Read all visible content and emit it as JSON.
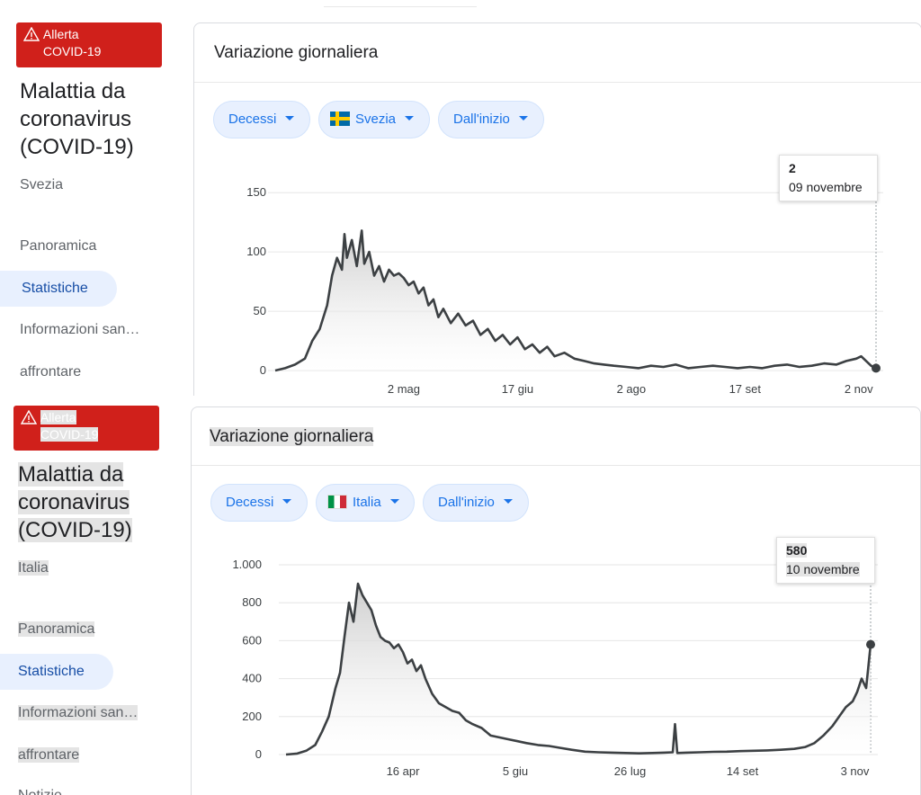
{
  "panels": [
    {
      "alert": {
        "line1": "Allerta",
        "line2": "COVID-19"
      },
      "title": "Malattia da coronavirus (COVID-19)",
      "country": "Svezia",
      "nav": [
        "Panoramica",
        "Statistiche",
        "Informazioni san…",
        "affrontare"
      ],
      "card_title": "Variazione giornaliera",
      "chips": {
        "metric": "Decessi",
        "country": "Svezia",
        "range": "Dall'inizio"
      },
      "tooltip": {
        "value": "2",
        "date": "09 novembre"
      }
    },
    {
      "alert": {
        "line1": "Allerta",
        "line2": "COVID-19"
      },
      "title": "Malattia da coronavirus (COVID-19)",
      "country": "Italia",
      "nav": [
        "Panoramica",
        "Statistiche",
        "Informazioni san…",
        "affrontare",
        "Notizie"
      ],
      "card_title": "Variazione giornaliera",
      "chips": {
        "metric": "Decessi",
        "country": "Italia",
        "range": "Dall'inizio"
      },
      "tooltip": {
        "value": "580",
        "date": "10 novembre"
      }
    }
  ],
  "colors": {
    "line": "#3c4043",
    "alert": "#d0201b",
    "chip_bg": "#e8f0fe",
    "chip_text": "#1a73e8",
    "active_nav": "#174ea6"
  },
  "chart_data": [
    {
      "type": "area",
      "xlabel": "",
      "ylabel": "",
      "ylim": [
        0,
        160
      ],
      "yticks": [
        0,
        50,
        100,
        150
      ],
      "ytick_labels": [
        "0",
        "50",
        "100",
        "150"
      ],
      "xlim": [
        "2020-03-11",
        "2020-11-09"
      ],
      "xticks": [
        "2020-05-02",
        "2020-06-17",
        "2020-08-02",
        "2020-09-17",
        "2020-11-02"
      ],
      "xtick_labels": [
        "2 mag",
        "17 giu",
        "2 ago",
        "17 set",
        "2 nov"
      ],
      "series": [
        {
          "x": [
            "2020-03-11",
            "2020-03-15",
            "2020-03-19",
            "2020-03-23",
            "2020-03-26",
            "2020-03-29",
            "2020-04-01",
            "2020-04-03",
            "2020-04-05",
            "2020-04-07",
            "2020-04-08",
            "2020-04-09",
            "2020-04-11",
            "2020-04-13",
            "2020-04-15",
            "2020-04-16",
            "2020-04-18",
            "2020-04-20",
            "2020-04-22",
            "2020-04-24",
            "2020-04-26",
            "2020-04-28",
            "2020-04-30",
            "2020-05-02",
            "2020-05-04",
            "2020-05-06",
            "2020-05-08",
            "2020-05-10",
            "2020-05-12",
            "2020-05-14",
            "2020-05-16",
            "2020-05-18",
            "2020-05-21",
            "2020-05-24",
            "2020-05-27",
            "2020-05-30",
            "2020-06-02",
            "2020-06-05",
            "2020-06-08",
            "2020-06-11",
            "2020-06-14",
            "2020-06-17",
            "2020-06-20",
            "2020-06-23",
            "2020-06-26",
            "2020-06-29",
            "2020-07-02",
            "2020-07-06",
            "2020-07-10",
            "2020-07-14",
            "2020-07-18",
            "2020-07-22",
            "2020-07-26",
            "2020-07-31",
            "2020-08-05",
            "2020-08-10",
            "2020-08-15",
            "2020-08-20",
            "2020-08-25",
            "2020-08-30",
            "2020-09-04",
            "2020-09-09",
            "2020-09-14",
            "2020-09-19",
            "2020-09-24",
            "2020-09-29",
            "2020-10-04",
            "2020-10-09",
            "2020-10-14",
            "2020-10-19",
            "2020-10-24",
            "2020-10-28",
            "2020-11-01",
            "2020-11-03",
            "2020-11-05",
            "2020-11-07",
            "2020-11-09"
          ],
          "values": [
            0,
            2,
            5,
            10,
            25,
            35,
            55,
            80,
            95,
            85,
            115,
            95,
            110,
            88,
            118,
            90,
            100,
            80,
            88,
            75,
            85,
            80,
            82,
            78,
            72,
            75,
            65,
            70,
            55,
            60,
            45,
            52,
            40,
            48,
            38,
            42,
            30,
            35,
            25,
            30,
            22,
            28,
            18,
            22,
            15,
            20,
            12,
            15,
            10,
            8,
            6,
            5,
            4,
            3,
            2,
            4,
            3,
            5,
            2,
            3,
            4,
            3,
            2,
            3,
            2,
            4,
            5,
            3,
            4,
            6,
            5,
            8,
            10,
            12,
            8,
            4,
            2
          ]
        }
      ]
    },
    {
      "type": "area",
      "xlabel": "",
      "ylabel": "",
      "ylim": [
        0,
        1000
      ],
      "yticks": [
        0,
        200,
        400,
        600,
        800,
        1000
      ],
      "ytick_labels": [
        "0",
        "200",
        "400",
        "600",
        "800",
        "1.000"
      ],
      "xlim": [
        "2020-02-24",
        "2020-11-10"
      ],
      "xticks": [
        "2020-04-16",
        "2020-06-05",
        "2020-07-26",
        "2020-09-14",
        "2020-11-03"
      ],
      "xtick_labels": [
        "16 apr",
        "5 giu",
        "26 lug",
        "14 set",
        "3 nov"
      ],
      "series": [
        {
          "x": [
            "2020-02-24",
            "2020-02-29",
            "2020-03-04",
            "2020-03-08",
            "2020-03-11",
            "2020-03-14",
            "2020-03-17",
            "2020-03-19",
            "2020-03-21",
            "2020-03-23",
            "2020-03-25",
            "2020-03-27",
            "2020-03-29",
            "2020-03-31",
            "2020-04-02",
            "2020-04-04",
            "2020-04-06",
            "2020-04-08",
            "2020-04-10",
            "2020-04-12",
            "2020-04-14",
            "2020-04-16",
            "2020-04-18",
            "2020-04-20",
            "2020-04-22",
            "2020-04-24",
            "2020-04-26",
            "2020-04-29",
            "2020-05-02",
            "2020-05-05",
            "2020-05-08",
            "2020-05-11",
            "2020-05-14",
            "2020-05-17",
            "2020-05-21",
            "2020-05-25",
            "2020-05-29",
            "2020-06-02",
            "2020-06-06",
            "2020-06-10",
            "2020-06-15",
            "2020-06-20",
            "2020-06-25",
            "2020-06-30",
            "2020-07-06",
            "2020-07-12",
            "2020-07-18",
            "2020-07-24",
            "2020-07-30",
            "2020-08-05",
            "2020-08-10",
            "2020-08-14",
            "2020-08-15",
            "2020-08-16",
            "2020-08-20",
            "2020-08-26",
            "2020-09-01",
            "2020-09-07",
            "2020-09-13",
            "2020-09-19",
            "2020-09-25",
            "2020-10-01",
            "2020-10-07",
            "2020-10-12",
            "2020-10-16",
            "2020-10-20",
            "2020-10-24",
            "2020-10-27",
            "2020-10-30",
            "2020-11-02",
            "2020-11-04",
            "2020-11-06",
            "2020-11-08",
            "2020-11-10"
          ],
          "values": [
            0,
            5,
            20,
            50,
            120,
            200,
            350,
            430,
            620,
            800,
            700,
            900,
            840,
            800,
            760,
            680,
            620,
            600,
            590,
            560,
            580,
            540,
            480,
            500,
            440,
            470,
            400,
            320,
            270,
            250,
            230,
            220,
            180,
            160,
            140,
            100,
            90,
            80,
            70,
            60,
            50,
            45,
            35,
            25,
            15,
            12,
            10,
            8,
            6,
            8,
            10,
            12,
            160,
            8,
            10,
            12,
            14,
            15,
            18,
            20,
            22,
            25,
            30,
            40,
            60,
            100,
            150,
            200,
            250,
            280,
            330,
            400,
            350,
            580
          ]
        }
      ]
    }
  ]
}
